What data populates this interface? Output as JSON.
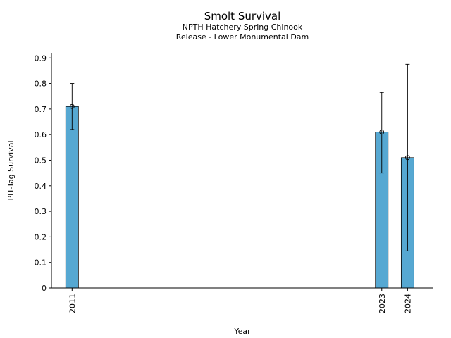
{
  "chart_data": {
    "type": "bar",
    "title": "Smolt Survival",
    "subtitle_lines": [
      "NPTH Hatchery Spring Chinook",
      "Release - Lower Monumental Dam"
    ],
    "xlabel": "Year",
    "ylabel": "PIT-Tag Survival",
    "xlim": [
      2010.2,
      2025.0
    ],
    "ylim": [
      0,
      0.92
    ],
    "yticks": [
      0,
      0.1,
      0.2,
      0.3,
      0.4,
      0.5,
      0.6,
      0.7,
      0.8,
      0.9
    ],
    "ytick_labels": [
      "0",
      "0.1",
      "0.2",
      "0.3",
      "0.4",
      "0.5",
      "0.6",
      "0.7",
      "0.8",
      "0.9"
    ],
    "categories": [
      "2011",
      "2023",
      "2024"
    ],
    "x": [
      2011,
      2023,
      2024
    ],
    "values": [
      0.71,
      0.61,
      0.51
    ],
    "error_low": [
      0.62,
      0.45,
      0.145
    ],
    "error_high": [
      0.8,
      0.765,
      0.875
    ],
    "bar_color": "#56a8d2"
  }
}
